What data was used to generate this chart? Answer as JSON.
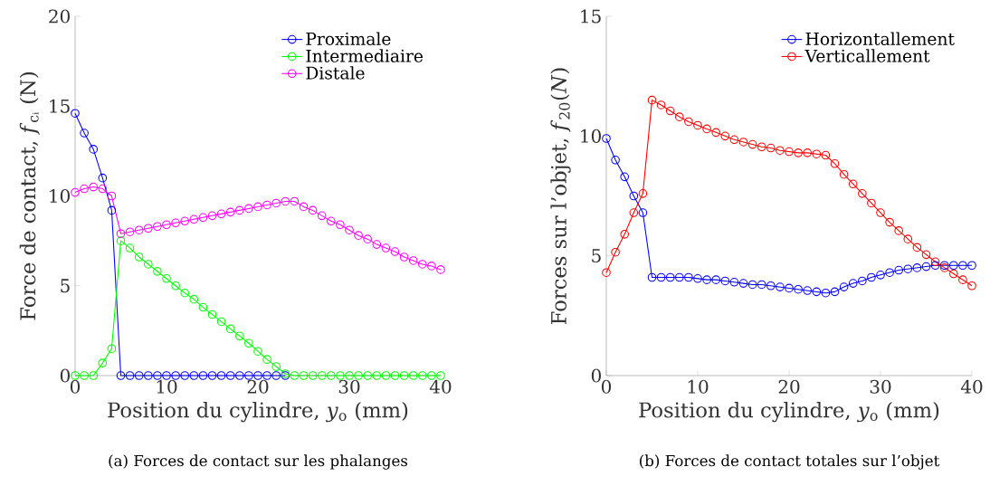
{
  "chart_data": [
    {
      "type": "line",
      "xlabel": "Position du cylindre, *y*$_{o}$ (mm)",
      "ylabel": "Force de contact, *f*$_{cᵢ}$ (N)",
      "annotations": [
        "(a) Forces de contact sur les phalanges"
      ],
      "marker": "circle",
      "legend": "top right",
      "x": [
        0,
        1,
        2,
        3,
        4,
        5,
        6,
        7,
        8,
        9,
        10,
        11,
        12,
        13,
        14,
        15,
        16,
        17,
        18,
        19,
        20,
        21,
        22,
        23,
        24,
        25,
        26,
        27,
        28,
        29,
        30,
        31,
        32,
        33,
        34,
        35,
        36,
        37,
        38,
        39,
        40
      ],
      "xlim": [
        0,
        40
      ],
      "xticks": [
        0,
        10,
        20,
        30,
        40
      ],
      "ylim": [
        0,
        20
      ],
      "yticks": [
        0,
        5,
        10,
        15,
        20
      ],
      "series": [
        {
          "name": "Proximale",
          "color": "#0000ff",
          "values": [
            14.6,
            13.5,
            12.6,
            11.0,
            9.2,
            0,
            0,
            0,
            0,
            0,
            0,
            0,
            0,
            0,
            0,
            0,
            0,
            0,
            0,
            0,
            0,
            0,
            0,
            0,
            null,
            null,
            null,
            null,
            null,
            null,
            null,
            null,
            null,
            null,
            null,
            null,
            null,
            null,
            null,
            null,
            null
          ]
        },
        {
          "name": "Intermediaire",
          "color": "#00ff00",
          "values": [
            0,
            0,
            0,
            0.7,
            1.5,
            7.5,
            7.1,
            6.6,
            6.2,
            5.8,
            5.4,
            5.0,
            4.6,
            4.25,
            3.8,
            3.4,
            3.0,
            2.6,
            2.2,
            1.8,
            1.35,
            0.9,
            0.5,
            0.1,
            0,
            0,
            0,
            0,
            0,
            0,
            0,
            0,
            0,
            0,
            0,
            0,
            0,
            0,
            0,
            0,
            0
          ]
        },
        {
          "name": "Distale",
          "color": "#ff00ff",
          "values": [
            10.2,
            10.4,
            10.5,
            10.4,
            10.0,
            7.9,
            8.0,
            8.1,
            8.2,
            8.3,
            8.4,
            8.5,
            8.6,
            8.7,
            8.8,
            8.9,
            9.0,
            9.1,
            9.2,
            9.3,
            9.4,
            9.5,
            9.6,
            9.7,
            9.7,
            9.4,
            9.2,
            8.9,
            8.6,
            8.4,
            8.1,
            7.8,
            7.6,
            7.3,
            7.1,
            6.9,
            6.6,
            6.4,
            6.2,
            6.1,
            5.9
          ]
        }
      ]
    },
    {
      "type": "line",
      "xlabel": "Position du cylindre, *y*$_{o}$ (mm)",
      "ylabel": "Forces sur l’objet, *f*$_{20}$(*N*)",
      "annotations": [
        "(b) Forces de contact totales sur l’objet"
      ],
      "marker": "circle",
      "legend": "top right",
      "x": [
        0,
        1,
        2,
        3,
        4,
        5,
        6,
        7,
        8,
        9,
        10,
        11,
        12,
        13,
        14,
        15,
        16,
        17,
        18,
        19,
        20,
        21,
        22,
        23,
        24,
        25,
        26,
        27,
        28,
        29,
        30,
        31,
        32,
        33,
        34,
        35,
        36,
        37,
        38,
        39,
        40
      ],
      "xlim": [
        0,
        40
      ],
      "xticks": [
        0,
        10,
        20,
        30,
        40
      ],
      "ylim": [
        0,
        15
      ],
      "yticks": [
        0,
        5,
        10,
        15
      ],
      "series": [
        {
          "name": "Horizontallement",
          "color": "#0000ff",
          "values": [
            9.9,
            9.0,
            8.3,
            7.5,
            6.8,
            4.1,
            4.1,
            4.1,
            4.1,
            4.1,
            4.05,
            4.0,
            4.0,
            3.95,
            3.9,
            3.85,
            3.8,
            3.8,
            3.75,
            3.7,
            3.65,
            3.6,
            3.55,
            3.5,
            3.45,
            3.5,
            3.7,
            3.85,
            3.95,
            4.1,
            4.2,
            4.3,
            4.4,
            4.45,
            4.5,
            4.55,
            4.6,
            4.6,
            4.6,
            4.6,
            4.6
          ]
        },
        {
          "name": "Verticallement",
          "color": "#ff0000",
          "values": [
            4.3,
            5.15,
            5.9,
            6.8,
            7.6,
            11.5,
            11.3,
            11.05,
            10.8,
            10.6,
            10.45,
            10.3,
            10.15,
            10.0,
            9.85,
            9.75,
            9.65,
            9.55,
            9.5,
            9.4,
            9.35,
            9.3,
            9.3,
            9.25,
            9.2,
            8.85,
            8.4,
            8.0,
            7.6,
            7.2,
            6.8,
            6.4,
            6.05,
            5.7,
            5.35,
            5.05,
            4.75,
            4.5,
            4.25,
            4.0,
            3.75
          ]
        }
      ]
    }
  ]
}
